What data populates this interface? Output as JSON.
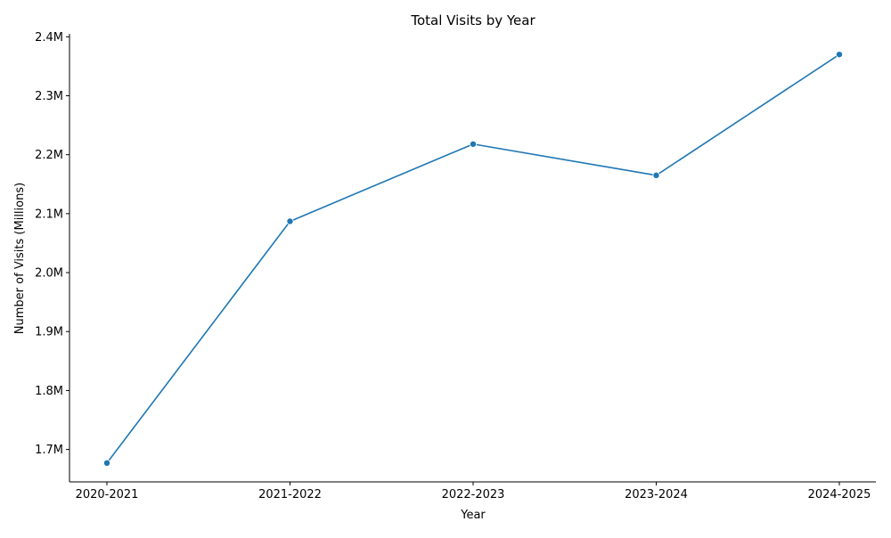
{
  "chart_data": {
    "type": "line",
    "title": "Total Visits by Year",
    "xlabel": "Year",
    "ylabel": "Number of Visits (Millions)",
    "categories": [
      "2020-2021",
      "2021-2022",
      "2022-2023",
      "2023-2024",
      "2024-2025"
    ],
    "series": [
      {
        "values": [
          1677000,
          2087000,
          2218000,
          2165000,
          2370000
        ],
        "color": "#1f77b4",
        "marker": "circle"
      }
    ],
    "ylim": [
      1645000,
      2405000
    ],
    "yticks": [
      1700000,
      1800000,
      1900000,
      2000000,
      2100000,
      2200000,
      2300000,
      2400000
    ],
    "ytick_labels": [
      "1.7M",
      "1.8M",
      "1.9M",
      "2.0M",
      "2.1M",
      "2.2M",
      "2.3M",
      "2.4M"
    ],
    "grid": false,
    "spines": "left-bottom"
  }
}
